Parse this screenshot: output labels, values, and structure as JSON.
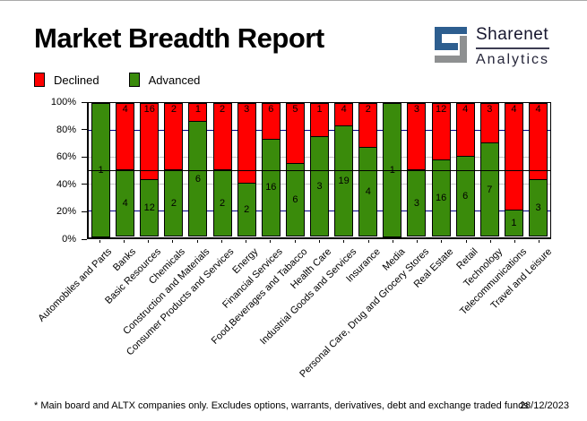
{
  "header": {
    "title": "Market Breadth Report",
    "logo": {
      "line1": "Sharenet",
      "line2": "Analytics",
      "blue": "#2d5e8f",
      "grey": "#8e9091"
    }
  },
  "legend": [
    {
      "label": "Declined",
      "color": "#ff0000"
    },
    {
      "label": "Advanced",
      "color": "#3a8b0b"
    }
  ],
  "chart_data": {
    "type": "bar",
    "stacked": true,
    "normalized": "percent",
    "title": "Market Breadth Report",
    "categories": [
      "Automobiles and Parts",
      "Banks",
      "Basic Resources",
      "Chemicals",
      "Construction and Materials",
      "Consumer Products and Services",
      "Energy",
      "Financial Services",
      "Food,Beverages and Tabacco",
      "Health Care",
      "Industrial Goods and Services",
      "Insurance",
      "Media",
      "Personal Care, Drug and Grocery Stores",
      "Real Estate",
      "Retail",
      "Technology",
      "Telecommunications",
      "Travel and Leisure"
    ],
    "series": [
      {
        "name": "Advanced",
        "color": "#3a8b0b",
        "values": [
          1,
          4,
          12,
          2,
          6,
          2,
          2,
          16,
          6,
          3,
          19,
          4,
          1,
          3,
          16,
          6,
          7,
          1,
          3
        ]
      },
      {
        "name": "Declined",
        "color": "#ff0000",
        "values": [
          0,
          4,
          16,
          2,
          1,
          2,
          3,
          6,
          5,
          1,
          4,
          2,
          0,
          3,
          12,
          4,
          3,
          4,
          4
        ]
      }
    ],
    "ylim": [
      0,
      100
    ],
    "yticks": [
      100,
      80,
      60,
      40,
      20,
      0
    ],
    "ytick_suffix": "%",
    "gridlines": [
      {
        "pct": 80,
        "color": "#000080"
      },
      {
        "pct": 60,
        "color": "#c6c6c6"
      },
      {
        "pct": 50,
        "color": "#000000"
      },
      {
        "pct": 40,
        "color": "#c6c6c6"
      },
      {
        "pct": 20,
        "color": "#000080"
      }
    ],
    "legend_position": "top-left",
    "bar_border_color": "#000000"
  },
  "footer": {
    "note": "* Main board and ALTX companies only. Excludes options, warrants, derivatives, debt and exchange traded funds",
    "date": "28/12/2023"
  }
}
